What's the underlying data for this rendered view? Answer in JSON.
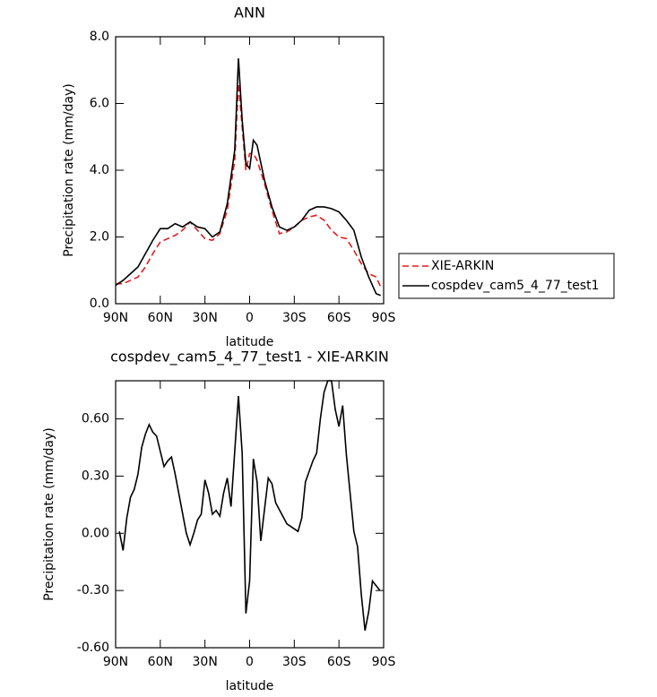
{
  "chart_data": [
    {
      "type": "line",
      "title": "ANN",
      "x_label": "latitude",
      "y_label": "Precipitation rate (mm/day)",
      "x": [
        90,
        85,
        80,
        75,
        70,
        65,
        60,
        55,
        50,
        45,
        40,
        35,
        30,
        25,
        20,
        15,
        10,
        7.5,
        5,
        2.5,
        0,
        -2.5,
        -5,
        -10,
        -15,
        -20,
        -25,
        -30,
        -35,
        -40,
        -45,
        -50,
        -55,
        -60,
        -65,
        -70,
        -75,
        -80,
        -85,
        -88
      ],
      "series": [
        {
          "name": "XIE-ARKIN",
          "color": "#e41a1c",
          "line_style": "dashed",
          "values": [
            0.6,
            0.6,
            0.7,
            0.8,
            1.1,
            1.5,
            1.85,
            1.95,
            2.05,
            2.2,
            2.45,
            2.2,
            1.95,
            1.9,
            2.1,
            2.8,
            4.3,
            6.6,
            5.3,
            4.0,
            4.5,
            4.5,
            4.3,
            3.6,
            2.8,
            2.1,
            2.15,
            2.3,
            2.5,
            2.6,
            2.65,
            2.5,
            2.2,
            2.0,
            1.95,
            1.6,
            1.2,
            0.9,
            0.8,
            0.5
          ]
        },
        {
          "name": "cospdev_cam5_4_77_test1",
          "color": "#000000",
          "line_style": "solid",
          "values": [
            0.55,
            0.7,
            0.9,
            1.1,
            1.5,
            1.9,
            2.25,
            2.25,
            2.4,
            2.3,
            2.45,
            2.3,
            2.25,
            2.0,
            2.15,
            3.0,
            4.6,
            7.35,
            5.5,
            4.2,
            4.05,
            4.9,
            4.75,
            3.7,
            2.9,
            2.3,
            2.2,
            2.3,
            2.5,
            2.8,
            2.9,
            2.9,
            2.85,
            2.75,
            2.5,
            2.2,
            1.4,
            0.8,
            0.3,
            0.25
          ]
        }
      ],
      "xlim": [
        90,
        -90
      ],
      "xticks": [
        {
          "value": 90,
          "label": "90N"
        },
        {
          "value": 60,
          "label": "60N"
        },
        {
          "value": 30,
          "label": "30N"
        },
        0,
        {
          "value": -30,
          "label": "30S"
        },
        {
          "value": -60,
          "label": "60S"
        },
        {
          "value": -90,
          "label": "90S"
        }
      ],
      "ylim": [
        0,
        8
      ],
      "yticks": [
        {
          "value": 0,
          "label": "0.0"
        },
        {
          "value": 2,
          "label": "2.0"
        },
        {
          "value": 4,
          "label": "4.0"
        },
        {
          "value": 6,
          "label": "6.0"
        },
        {
          "value": 8,
          "label": "8.0"
        }
      ],
      "legend": "right"
    },
    {
      "type": "line",
      "title": "cospdev_cam5_4_77_test1 - XIE-ARKIN",
      "x_label": "latitude",
      "y_label": "Precipitation rate (mm/day)",
      "x": [
        87.5,
        85,
        82.5,
        80,
        77.5,
        75,
        72.5,
        70,
        67.5,
        65,
        62.5,
        57.5,
        55,
        52.5,
        50,
        42.5,
        40,
        37.5,
        35,
        32.5,
        30,
        27.5,
        25,
        22.5,
        20,
        17.5,
        15,
        12.5,
        7.5,
        5,
        2.5,
        0,
        -2.5,
        -5,
        -7.5,
        -12.5,
        -15,
        -17.5,
        -25,
        -32.5,
        -35,
        -37.5,
        -42.5,
        -45,
        -47.5,
        -50,
        -52.5,
        -55,
        -57.5,
        -60,
        -62.5,
        -65,
        -70,
        -72.5,
        -75,
        -77.5,
        -80,
        -82.5,
        -87.5
      ],
      "values": [
        0.01,
        -0.09,
        0.08,
        0.19,
        0.23,
        0.31,
        0.45,
        0.52,
        0.57,
        0.53,
        0.51,
        0.35,
        0.38,
        0.4,
        0.31,
        0.0,
        -0.06,
        0.0,
        0.07,
        0.1,
        0.28,
        0.21,
        0.1,
        0.12,
        0.09,
        0.21,
        0.29,
        0.14,
        0.72,
        0.42,
        -0.42,
        -0.25,
        0.39,
        0.27,
        -0.04,
        0.29,
        0.26,
        0.16,
        0.05,
        0.01,
        0.08,
        0.27,
        0.38,
        0.42,
        0.6,
        0.74,
        0.8,
        0.8,
        0.65,
        0.56,
        0.67,
        0.41,
        0.01,
        -0.07,
        -0.32,
        -0.51,
        -0.41,
        -0.25,
        -0.3
      ],
      "color": "#000000",
      "line_style": "solid",
      "xlim": [
        90,
        -90
      ],
      "xticks": [
        {
          "value": 90,
          "label": "90N"
        },
        {
          "value": 60,
          "label": "60N"
        },
        {
          "value": 30,
          "label": "30N"
        },
        0,
        {
          "value": -30,
          "label": "30S"
        },
        {
          "value": -60,
          "label": "60S"
        },
        {
          "value": -90,
          "label": "90S"
        }
      ],
      "ylim": [
        -0.6,
        0.8
      ],
      "yticks": [
        {
          "value": -0.6,
          "label": "-0.60"
        },
        {
          "value": -0.3,
          "label": "-0.30"
        },
        {
          "value": 0,
          "label": "0.00"
        },
        {
          "value": 0.3,
          "label": "0.30"
        },
        {
          "value": 0.6,
          "label": "0.60"
        }
      ]
    }
  ]
}
